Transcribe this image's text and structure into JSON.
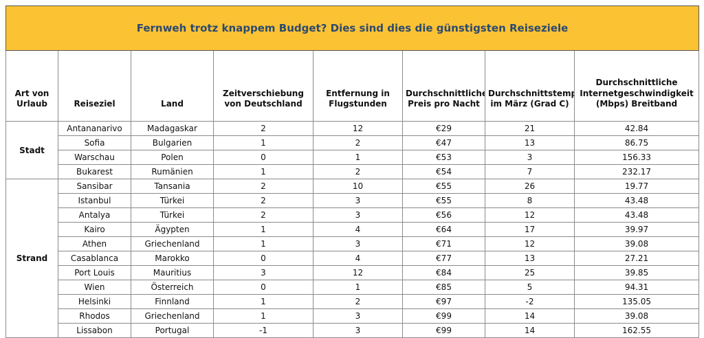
{
  "title": "Fernweh trotz knappem Budget? Dies sind dies die günstigsten Reiseziele",
  "headers": [
    "Art von Urlaub",
    "Reiseziel",
    "Land",
    "Zeitverschiebung von Deutschland",
    "Entfernung in Flugstunden",
    "Durchschnittlicher Preis pro Nacht",
    "Durchschnittstemparatur im März (Grad C)",
    "Durchschnittliche Internetgeschwindigkeit (Mbps) Breitband"
  ],
  "groups": [
    {
      "label": "Stadt",
      "rows": [
        [
          "Antananarivo",
          "Madagaskar",
          "2",
          "12",
          "€29",
          "21",
          "42.84"
        ],
        [
          "Sofia",
          "Bulgarien",
          "1",
          "2",
          "€47",
          "13",
          "86.75"
        ],
        [
          "Warschau",
          "Polen",
          "0",
          "1",
          "€53",
          "3",
          "156.33"
        ],
        [
          "Bukarest",
          "Rumänien",
          "1",
          "2",
          "€54",
          "7",
          "232.17"
        ]
      ]
    },
    {
      "label": "Strand",
      "rows": [
        [
          "Sansibar",
          "Tansania",
          "2",
          "10",
          "€55",
          "26",
          "19.77"
        ],
        [
          "Istanbul",
          "Türkei",
          "2",
          "3",
          "€55",
          "8",
          "43.48"
        ],
        [
          "Antalya",
          "Türkei",
          "2",
          "3",
          "€56",
          "12",
          "43.48"
        ],
        [
          "Kairo",
          "Ägypten",
          "1",
          "4",
          "€64",
          "17",
          "39.97"
        ],
        [
          "Athen",
          "Griechenland",
          "1",
          "3",
          "€71",
          "12",
          "39.08"
        ],
        [
          "Casablanca",
          "Marokko",
          "0",
          "4",
          "€77",
          "13",
          "27.21"
        ],
        [
          "Port Louis",
          "Mauritius",
          "3",
          "12",
          "€84",
          "25",
          "39.85"
        ],
        [
          "Wien",
          "Österreich",
          "0",
          "1",
          "€85",
          "5",
          "94.31"
        ],
        [
          "Helsinki",
          "Finnland",
          "1",
          "2",
          "€97",
          "-2",
          "135.05"
        ],
        [
          "Rhodos",
          "Griechenland",
          "1",
          "3",
          "€99",
          "14",
          "39.08"
        ],
        [
          "Lissabon",
          "Portugal",
          "-1",
          "3",
          "€99",
          "14",
          "162.55"
        ]
      ]
    }
  ]
}
